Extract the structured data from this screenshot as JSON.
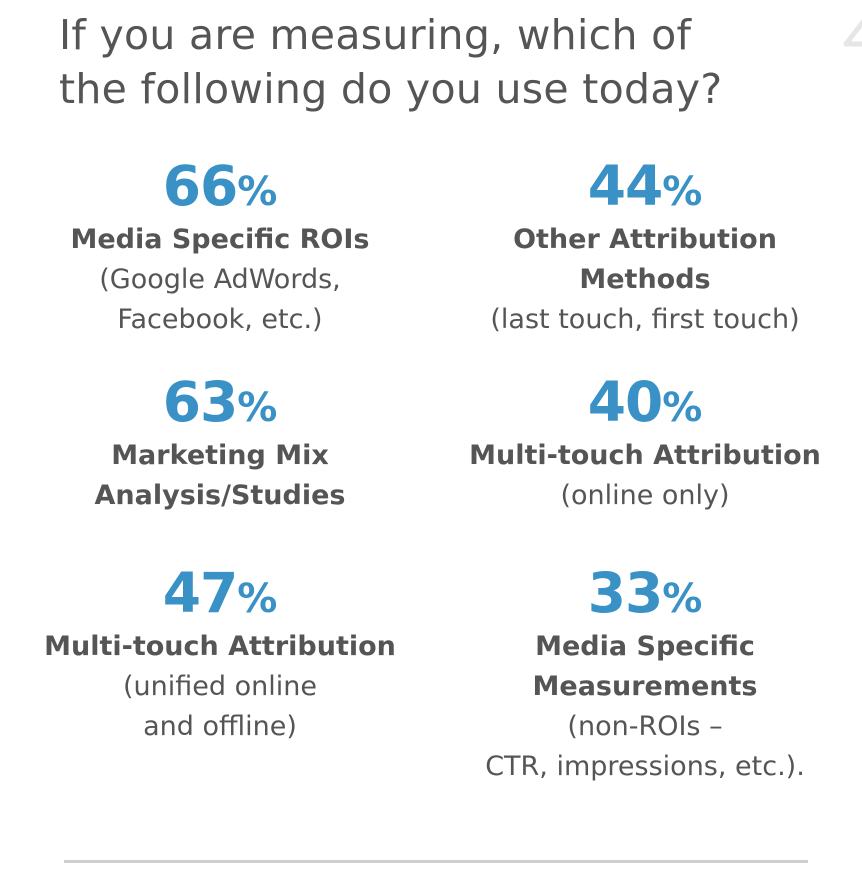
{
  "title": {
    "line1": "If you are measuring, which of",
    "line2": "the following do you use today?"
  },
  "stats": [
    {
      "value": "66",
      "unit": "%",
      "label_lines": [
        "Media Specific ROIs"
      ],
      "note_lines": [
        "(Google AdWords,",
        "Facebook, etc.)"
      ]
    },
    {
      "value": "44",
      "unit": "%",
      "label_lines": [
        "Other Attribution",
        "Methods"
      ],
      "note_lines": [
        "(last touch, first touch)"
      ]
    },
    {
      "value": "63",
      "unit": "%",
      "label_lines": [
        "Marketing Mix",
        "Analysis/Studies"
      ],
      "note_lines": []
    },
    {
      "value": "40",
      "unit": "%",
      "label_lines": [
        "Multi-touch Attribution"
      ],
      "note_lines": [
        "(online only)"
      ]
    },
    {
      "value": "47",
      "unit": "%",
      "label_lines": [
        "Multi-touch Attribution"
      ],
      "note_lines": [
        "(unified online",
        "and offline)"
      ]
    },
    {
      "value": "33",
      "unit": "%",
      "label_lines": [
        "Media Specific",
        "Measurements"
      ],
      "note_lines": [
        "(non-ROIs –",
        "CTR, impressions, etc.)."
      ]
    }
  ],
  "colors": {
    "accent": "#3a91c6",
    "text": "#555555",
    "divider": "#cfcfcf"
  }
}
